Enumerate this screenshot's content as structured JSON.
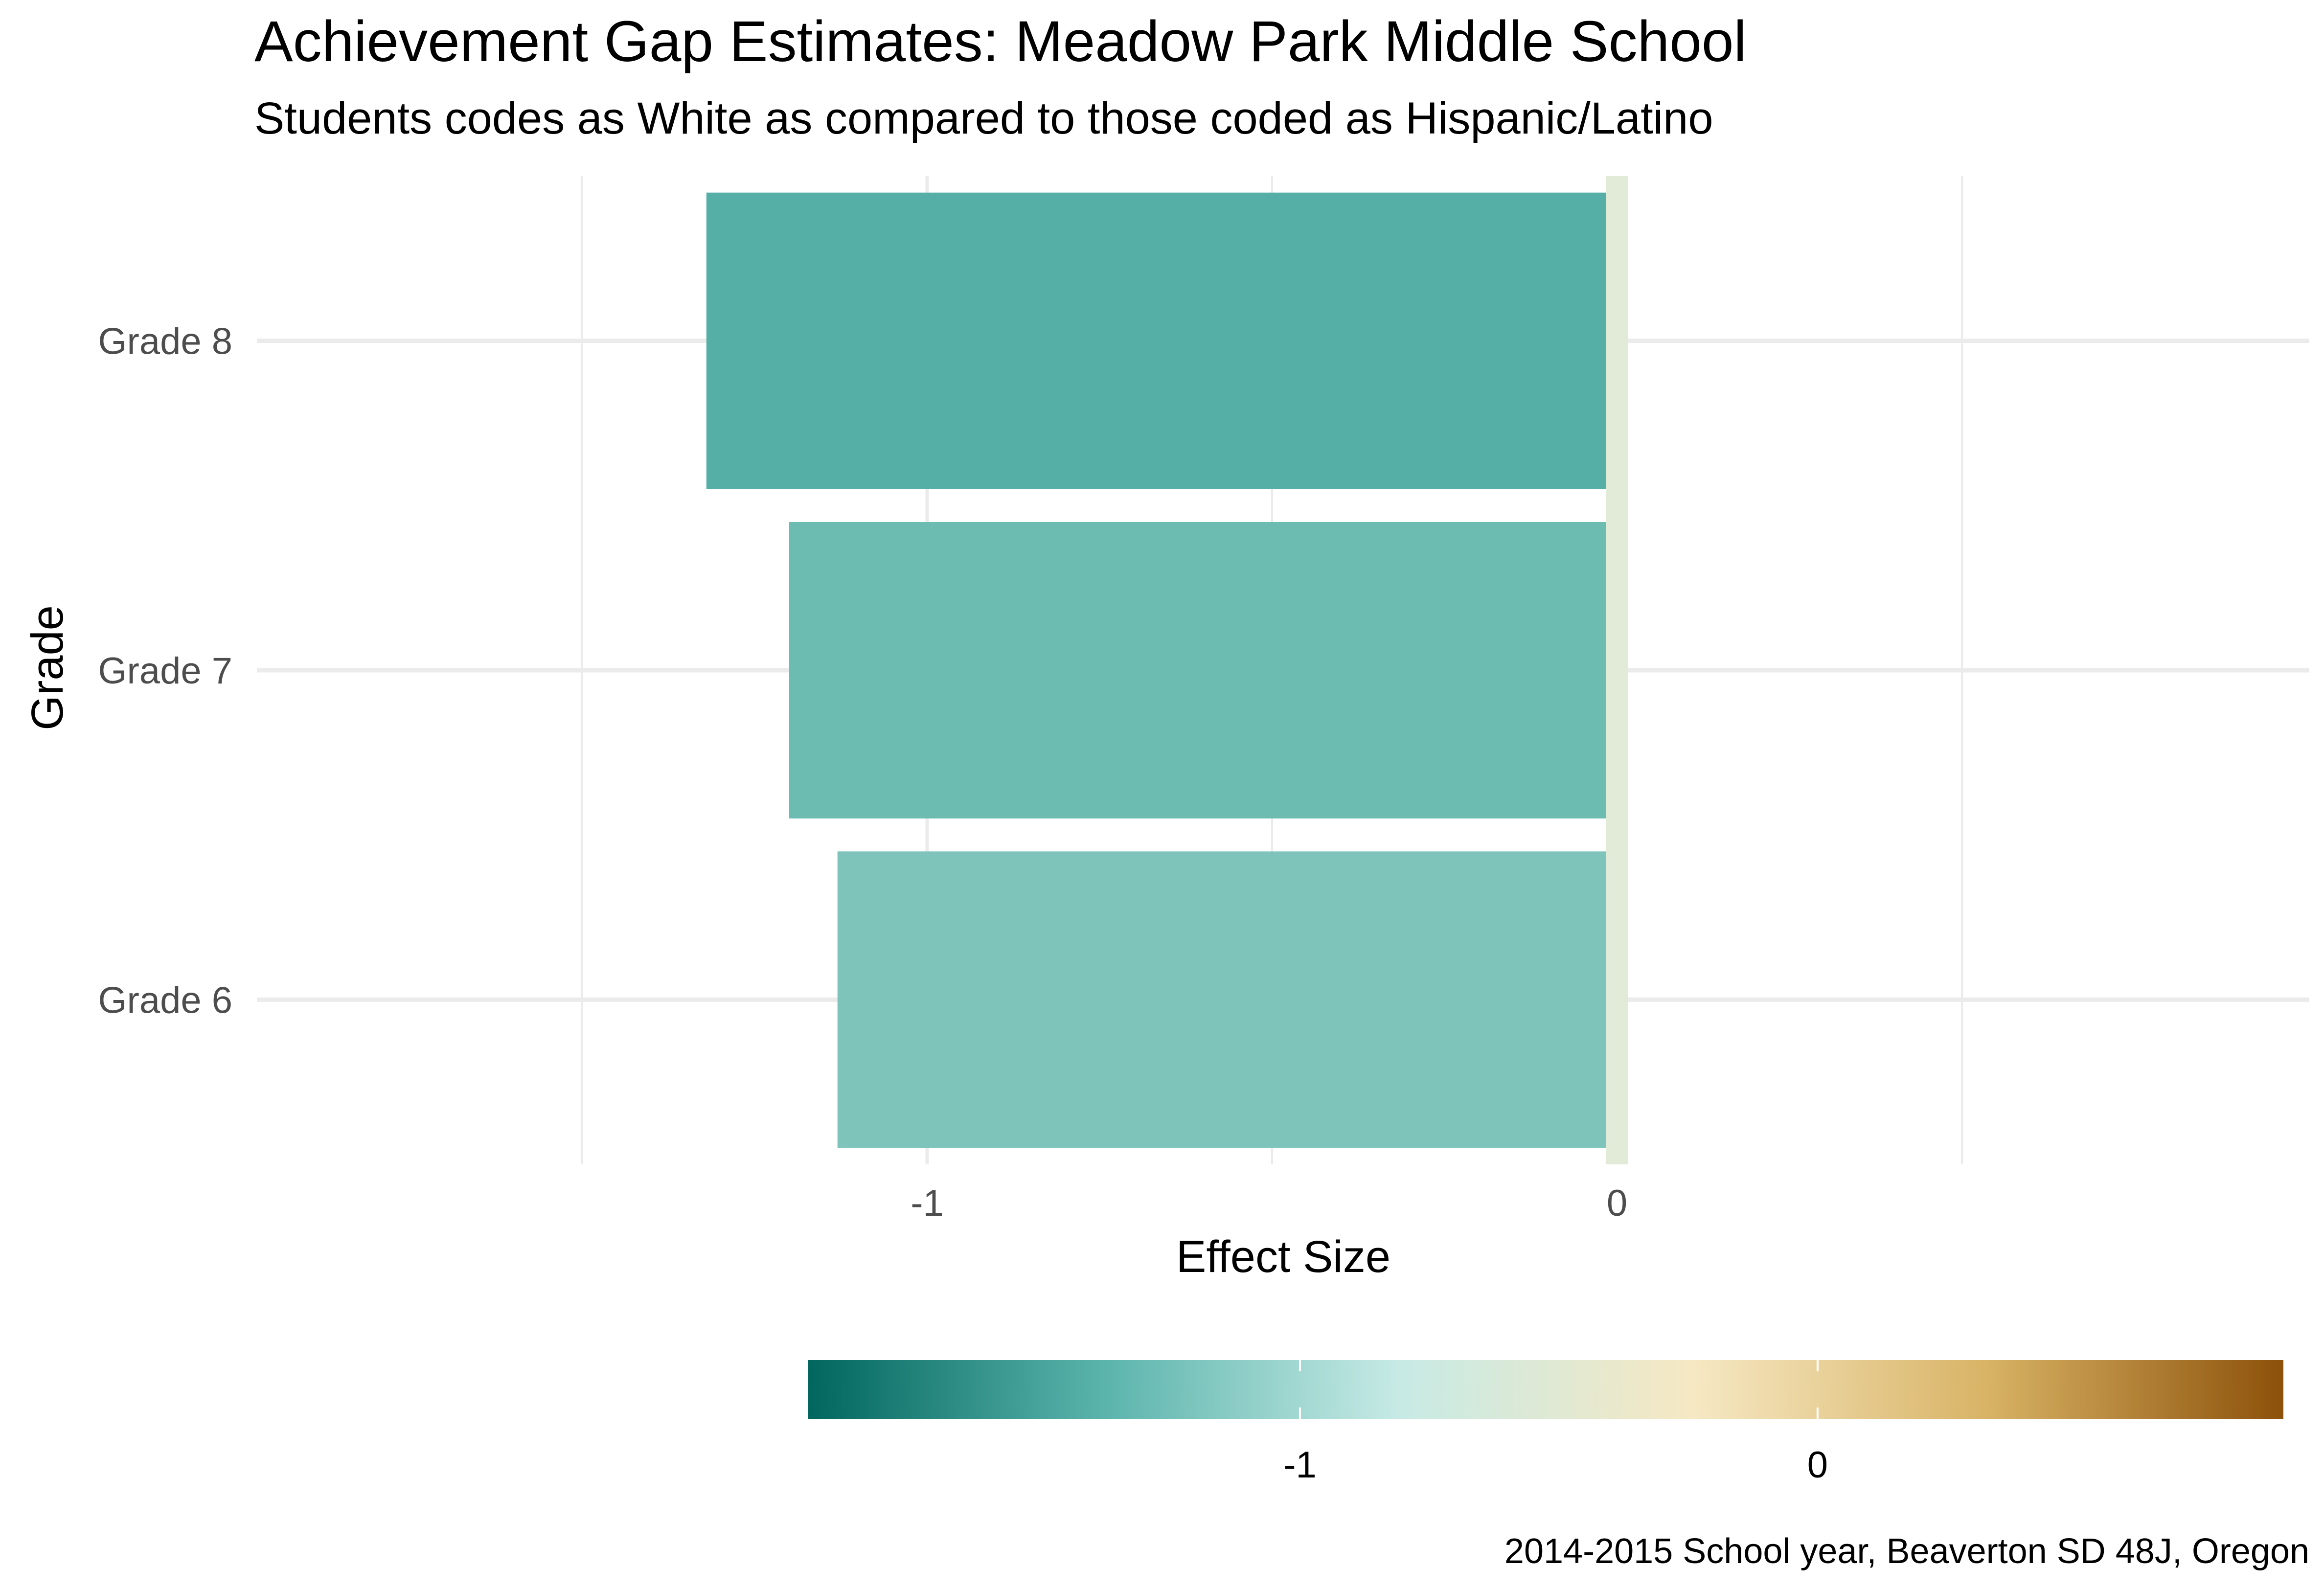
{
  "chart_data": {
    "type": "bar",
    "orientation": "horizontal",
    "title": "Achievement Gap Estimates: Meadow Park Middle School",
    "subtitle": "Students codes as White as compared to those coded as Hispanic/Latino",
    "xlabel": "Effect Size",
    "ylabel": "Grade",
    "caption": "2014-2015 School year, Beaverton SD 48J, Oregon",
    "categories": [
      "Grade 6",
      "Grade 7",
      "Grade 8"
    ],
    "values": [
      -1.13,
      -1.2,
      -1.32
    ],
    "bar_colors": [
      "#7fc4ba",
      "#6dbcb2",
      "#55afa6"
    ],
    "reference_line": {
      "value": 0,
      "color": "#e2ead8"
    },
    "x_ticks": [
      -1,
      0
    ],
    "xlim": [
      -1.5,
      1.0
    ],
    "grid": true,
    "legend": {
      "type": "colorbar",
      "position": "bottom",
      "ticks": [
        -1,
        0
      ],
      "range": [
        -1.95,
        0.9
      ],
      "colors": [
        "#01665e",
        "#5ab4ac",
        "#c7eae5",
        "#f6e8c3",
        "#d8b365",
        "#8c510a"
      ]
    }
  }
}
